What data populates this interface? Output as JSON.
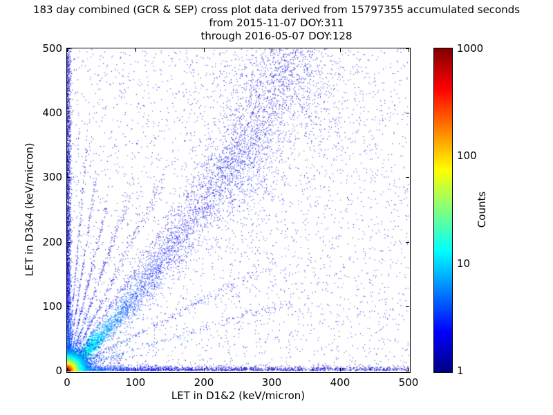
{
  "title": {
    "line1": "183 day combined (GCR & SEP) cross plot data derived from 15797355 accumulated seconds",
    "line2": "from 2015-11-07 DOY:311",
    "line3": "through 2016-05-07 DOY:128"
  },
  "chart_data": {
    "type": "scatter",
    "subtype": "2d-density-cross-plot",
    "title": "183 day combined (GCR & SEP) cross plot data derived from 15797355 accumulated seconds from 2015-11-07 DOY:311 through 2016-05-07 DOY:128",
    "accumulated_seconds": 15797355,
    "start": "2015-11-07 DOY:311",
    "end": "2016-05-07 DOY:128",
    "xlabel": "LET in D1&2 (keV/micron)",
    "ylabel": "LET in D3&4 (keV/micron)",
    "xlim": [
      0,
      500
    ],
    "ylim": [
      0,
      500
    ],
    "xticks": [
      0,
      100,
      200,
      300,
      400,
      500
    ],
    "yticks": [
      0,
      100,
      200,
      300,
      400,
      500
    ],
    "grid": false,
    "colorbar": {
      "label": "Counts",
      "scale": "log",
      "min": 1,
      "max": 1000,
      "ticks": [
        1,
        10,
        100,
        1000
      ],
      "colormap": "jet"
    },
    "features": [
      {
        "name": "sparse-background",
        "kind": "uniform",
        "count": 3000,
        "t0": 0.05,
        "tj": 0.09,
        "size": 1
      },
      {
        "name": "background-speckle",
        "kind": "uniform",
        "count": 320,
        "t0": 0.15,
        "tj": 0.12,
        "size": 1
      },
      {
        "name": "bottom-edge-band",
        "kind": "edge",
        "axis": "x",
        "count": 2300,
        "exp": 1.8,
        "sigma": 3.5,
        "t0": 0.07,
        "amp": 0.42,
        "decay": 55
      },
      {
        "name": "left-edge-band",
        "kind": "edge",
        "axis": "y",
        "count": 2700,
        "exp": 1.5,
        "sigma": 2.8,
        "t0": 0.07,
        "amp": 0.42,
        "decay": 55
      },
      {
        "name": "main-diagonal-band",
        "kind": "diagonal",
        "count": 5200,
        "xmax": 430,
        "exp": 1.7,
        "curve": 700,
        "sigma0": 2.5,
        "sigmak": 0.1,
        "t0": 0.07,
        "amp": 0.5,
        "decay": 70
      },
      {
        "name": "steep-ray-1",
        "kind": "ray",
        "slope": 1.55,
        "count": 380,
        "ymax": 330,
        "t0": 0.07,
        "amp": 0.35,
        "decay": 60
      },
      {
        "name": "steep-ray-2",
        "kind": "ray",
        "slope": 2.1,
        "count": 330,
        "ymax": 300,
        "t0": 0.07,
        "amp": 0.35,
        "decay": 60
      },
      {
        "name": "steep-ray-3",
        "kind": "ray",
        "slope": 3.0,
        "count": 300,
        "ymax": 280,
        "t0": 0.07,
        "amp": 0.35,
        "decay": 55
      },
      {
        "name": "steep-ray-4",
        "kind": "ray",
        "slope": 4.4,
        "count": 260,
        "ymax": 260,
        "t0": 0.07,
        "amp": 0.35,
        "decay": 55
      },
      {
        "name": "steep-ray-5",
        "kind": "ray",
        "slope": 7.0,
        "count": 240,
        "ymax": 300,
        "t0": 0.07,
        "amp": 0.3,
        "decay": 55
      },
      {
        "name": "steep-ray-6",
        "kind": "ray",
        "slope": 12.0,
        "count": 210,
        "ymax": 360,
        "t0": 0.07,
        "amp": 0.3,
        "decay": 60
      },
      {
        "name": "shallow-ray-1",
        "kind": "ray",
        "slope": 0.55,
        "count": 260,
        "ymax": 170,
        "t0": 0.07,
        "amp": 0.3,
        "decay": 50
      },
      {
        "name": "shallow-ray-2",
        "kind": "ray",
        "slope": 0.33,
        "count": 220,
        "ymax": 110,
        "t0": 0.07,
        "amp": 0.3,
        "decay": 50
      },
      {
        "name": "upper-fan-cloud",
        "kind": "gauss",
        "count": 850,
        "cx": 315,
        "cy": 430,
        "sx": 55,
        "sy": 60,
        "t0": 0.06,
        "tj": 0.08
      },
      {
        "name": "mid-diagonal-cluster",
        "kind": "gauss",
        "count": 520,
        "cx": 255,
        "cy": 310,
        "sx": 28,
        "sy": 38,
        "t0": 0.09,
        "tj": 0.1
      },
      {
        "name": "origin-hotspot",
        "kind": "hotspot",
        "count": 7200,
        "scale": 9,
        "scale2": 26,
        "mix": 0.72,
        "decay": 20,
        "t0": 0.04
      }
    ]
  }
}
